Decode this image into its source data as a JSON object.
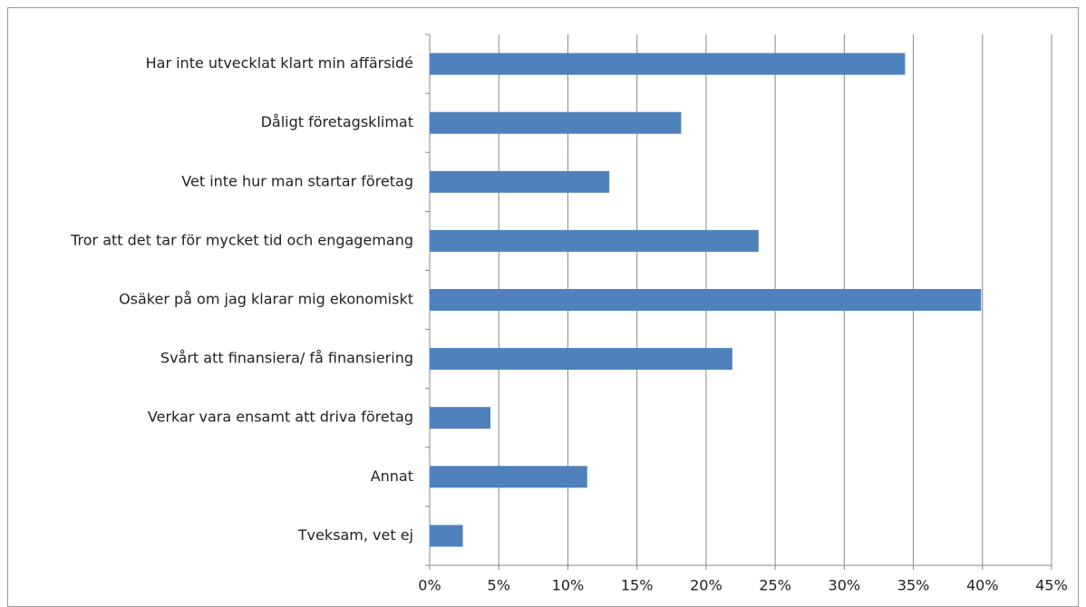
{
  "chart_data": {
    "type": "bar",
    "orientation": "horizontal",
    "categories": [
      "Har inte utvecklat klart min affärsidé",
      "Dåligt företagsklimat",
      "Vet inte hur man startar företag",
      "Tror att det tar för mycket tid och engagemang",
      "Osäker på om jag klarar mig ekonomiskt",
      "Svårt att finansiera/ få finansiering",
      "Verkar vara ensamt att driva företag",
      "Annat",
      "Tveksam, vet ej"
    ],
    "values": [
      34.4,
      18.2,
      13.0,
      23.8,
      39.9,
      21.9,
      4.4,
      11.4,
      2.4
    ],
    "color": "#4f81bd",
    "xlim": [
      0,
      45
    ],
    "xticks": [
      {
        "value": 0,
        "label": "0%"
      },
      {
        "value": 5,
        "label": "5%"
      },
      {
        "value": 10,
        "label": "10%"
      },
      {
        "value": 15,
        "label": "15%"
      },
      {
        "value": 20,
        "label": "20%"
      },
      {
        "value": 25,
        "label": "25%"
      },
      {
        "value": 30,
        "label": "30%"
      },
      {
        "value": 35,
        "label": "35%"
      },
      {
        "value": 40,
        "label": "40%"
      },
      {
        "value": 45,
        "label": "45%"
      }
    ],
    "grid": true
  }
}
